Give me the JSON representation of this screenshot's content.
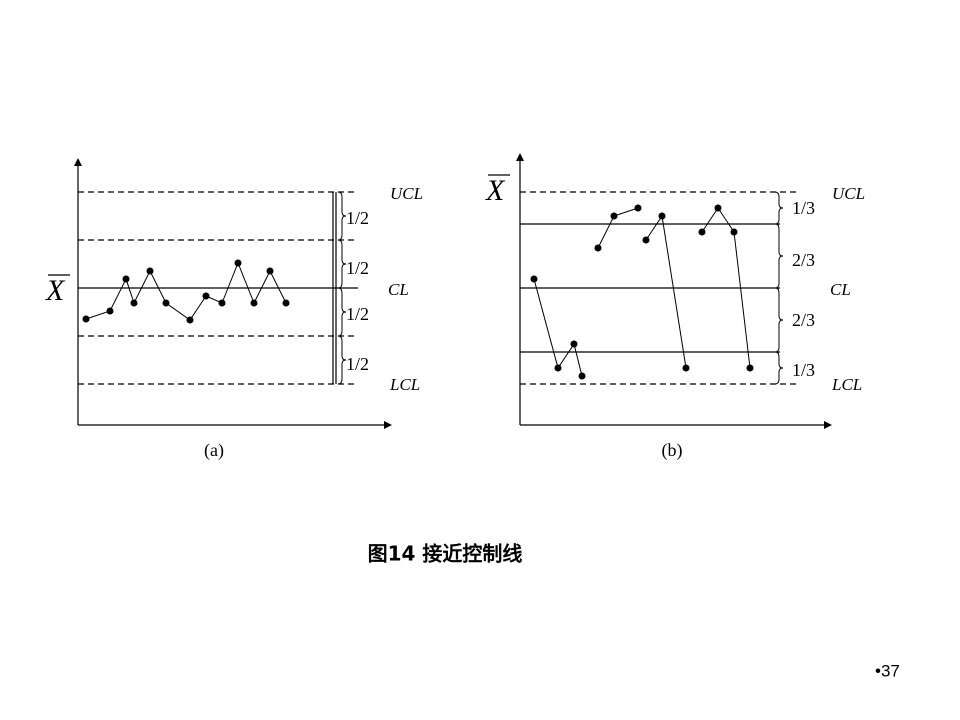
{
  "panels": [
    {
      "label": "(a)",
      "axis_symbol": "X",
      "ucl": "UCL",
      "cl": "CL",
      "lcl": "LCL",
      "zones": [
        "1/2",
        "1/2",
        "1/2",
        "1/2"
      ]
    },
    {
      "label": "(b)",
      "axis_symbol": "X",
      "ucl": "UCL",
      "cl": "CL",
      "lcl": "LCL",
      "zones": [
        "1/3",
        "2/3",
        "2/3",
        "1/3"
      ]
    }
  ],
  "caption": "图14  接近控制线",
  "page_number": "•37"
}
